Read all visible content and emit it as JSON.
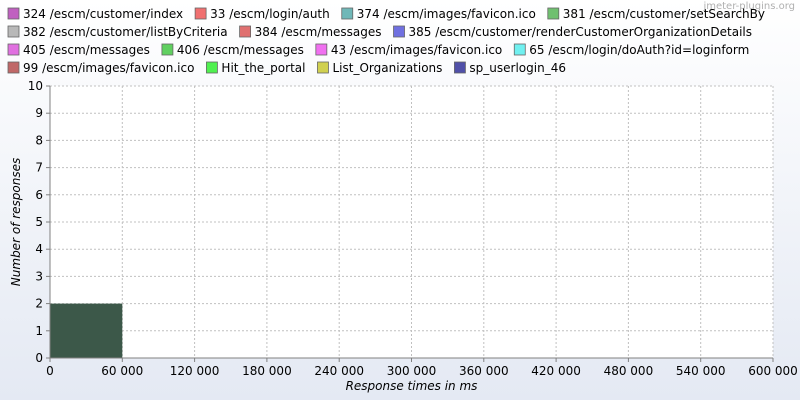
{
  "watermark": "jmeter-plugins.org",
  "chart_data": {
    "type": "bar",
    "xlabel": "Response times in ms",
    "ylabel": "Number of responses",
    "xlim": [
      0,
      600000
    ],
    "ylim": [
      0,
      10
    ],
    "x_ticks": [
      0,
      60000,
      120000,
      180000,
      240000,
      300000,
      360000,
      420000,
      480000,
      540000,
      600000
    ],
    "x_tick_labels": [
      "0",
      "60 000",
      "120 000",
      "180 000",
      "240 000",
      "300 000",
      "360 000",
      "420 000",
      "480 000",
      "540 000",
      "600 000"
    ],
    "y_ticks": [
      0,
      1,
      2,
      3,
      4,
      5,
      6,
      7,
      8,
      9,
      10
    ],
    "y_tick_labels": [
      "0",
      "1",
      "2",
      "3",
      "4",
      "5",
      "6",
      "7",
      "8",
      "9",
      "10"
    ],
    "grid": true,
    "bin_width": 60000,
    "bars": [
      {
        "x_start": 0,
        "x_end": 60000,
        "count": 2,
        "color": "#3c5849"
      }
    ],
    "legend": [
      {
        "name": "324 /escm/customer/index",
        "color": "#c060c0"
      },
      {
        "name": "33 /escm/login/auth",
        "color": "#f07070"
      },
      {
        "name": "374 /escm/images/favicon.ico",
        "color": "#70b8b8"
      },
      {
        "name": "381 /escm/customer/setSearchBy",
        "color": "#70c070"
      },
      {
        "name": "382 /escm/customer/listByCriteria",
        "color": "#b8b8b8"
      },
      {
        "name": "384 /escm/messages",
        "color": "#e07070"
      },
      {
        "name": "385 /escm/customer/renderCustomerOrganizationDetails",
        "color": "#7070e0"
      },
      {
        "name": "405 /escm/messages",
        "color": "#e070e0"
      },
      {
        "name": "406 /escm/messages",
        "color": "#60d060"
      },
      {
        "name": "43 /escm/images/favicon.ico",
        "color": "#f070f0"
      },
      {
        "name": "65 /escm/login/doAuth?id=loginform",
        "color": "#70f0f0"
      },
      {
        "name": "99 /escm/images/favicon.ico",
        "color": "#c06868"
      },
      {
        "name": "Hit_the_portal",
        "color": "#50f050"
      },
      {
        "name": "List_Organizations",
        "color": "#d0d050"
      },
      {
        "name": "sp_userlogin_46",
        "color": "#5050a8"
      }
    ]
  }
}
